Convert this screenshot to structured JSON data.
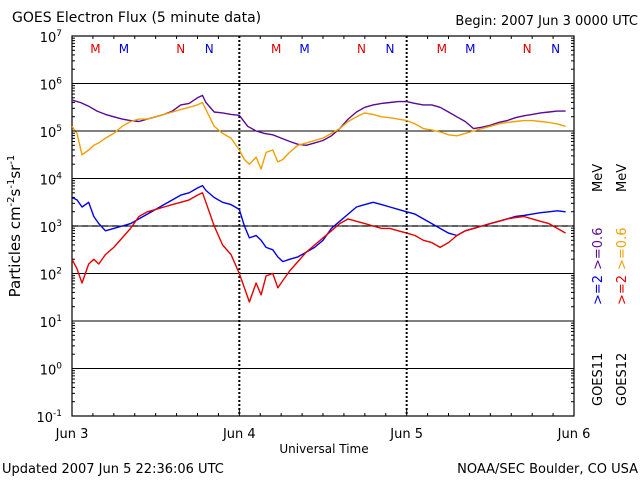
{
  "chart_data": {
    "type": "line",
    "title": "GOES Electron Flux (5 minute data)",
    "begin_label": "Begin: 2007 Jun 3 0000 UTC",
    "xlabel": "Universal Time",
    "ylabel_parts": [
      "Particles cm",
      "-2",
      "s",
      "-1",
      "sr",
      "-1"
    ],
    "updated_label": "Updated 2007 Jun  5 22:36:06 UTC",
    "credit_label": "NOAA/SEC Boulder, CO USA",
    "x_ticks": [
      {
        "x": 0,
        "label": "Jun 3"
      },
      {
        "x": 1,
        "label": "Jun 4"
      },
      {
        "x": 2,
        "label": "Jun 5"
      },
      {
        "x": 3,
        "label": "Jun 6"
      }
    ],
    "xlim": [
      0,
      3
    ],
    "ylim_log10": [
      -1,
      7
    ],
    "y_ticks": [
      {
        "exp": 7,
        "base": "10",
        "sup": "7"
      },
      {
        "exp": 6,
        "base": "10",
        "sup": "6"
      },
      {
        "exp": 5,
        "base": "10",
        "sup": "5"
      },
      {
        "exp": 4,
        "base": "10",
        "sup": "4"
      },
      {
        "exp": 3,
        "base": "10",
        "sup": "3"
      },
      {
        "exp": 2,
        "base": "10",
        "sup": "2"
      },
      {
        "exp": 1,
        "base": "10",
        "sup": "1"
      },
      {
        "exp": 0,
        "base": "10",
        "sup": "0"
      },
      {
        "exp": -1,
        "base": "10",
        "sup": "-1"
      }
    ],
    "threshold_log10": 3,
    "markers": [
      {
        "x": 0.14,
        "label": "M",
        "color": "#e00000"
      },
      {
        "x": 0.31,
        "label": "M",
        "color": "#0000e0"
      },
      {
        "x": 0.65,
        "label": "N",
        "color": "#e00000"
      },
      {
        "x": 0.82,
        "label": "N",
        "color": "#0000e0"
      },
      {
        "x": 1.22,
        "label": "M",
        "color": "#e00000"
      },
      {
        "x": 1.39,
        "label": "M",
        "color": "#0000e0"
      },
      {
        "x": 1.73,
        "label": "N",
        "color": "#e00000"
      },
      {
        "x": 1.9,
        "label": "N",
        "color": "#0000e0"
      },
      {
        "x": 2.21,
        "label": "M",
        "color": "#e00000"
      },
      {
        "x": 2.38,
        "label": "M",
        "color": "#0000e0"
      },
      {
        "x": 2.72,
        "label": "N",
        "color": "#e00000"
      },
      {
        "x": 2.89,
        "label": "N",
        "color": "#0000e0"
      }
    ],
    "legend": {
      "goes11_label": "GOES11",
      "goes12_label": "GOES12",
      "g11_low_label": ">=2",
      "g11_high_label": ">=0.6",
      "g12_low_label": ">=2",
      "g12_high_label": ">=0.6",
      "unit_label": "MeV"
    },
    "series": [
      {
        "name": "GOES11 >=0.6 MeV",
        "color": "#5a0a96",
        "x": [
          0.0,
          0.05,
          0.1,
          0.15,
          0.2,
          0.25,
          0.3,
          0.35,
          0.4,
          0.45,
          0.5,
          0.55,
          0.6,
          0.65,
          0.7,
          0.75,
          0.78,
          0.8,
          0.85,
          0.9,
          0.95,
          1.0,
          1.05,
          1.1,
          1.15,
          1.2,
          1.25,
          1.3,
          1.35,
          1.4,
          1.45,
          1.5,
          1.55,
          1.6,
          1.65,
          1.7,
          1.75,
          1.8,
          1.85,
          1.9,
          1.95,
          2.0,
          2.05,
          2.1,
          2.15,
          2.2,
          2.25,
          2.3,
          2.35,
          2.4,
          2.45,
          2.5,
          2.55,
          2.6,
          2.65,
          2.7,
          2.75,
          2.8,
          2.85,
          2.9,
          2.95
        ],
        "log10_values": [
          5.65,
          5.6,
          5.52,
          5.42,
          5.35,
          5.3,
          5.25,
          5.22,
          5.2,
          5.25,
          5.3,
          5.35,
          5.42,
          5.55,
          5.58,
          5.7,
          5.75,
          5.6,
          5.4,
          5.38,
          5.35,
          5.33,
          5.1,
          5.0,
          4.95,
          4.92,
          4.85,
          4.78,
          4.72,
          4.7,
          4.75,
          4.8,
          4.9,
          5.05,
          5.25,
          5.4,
          5.5,
          5.55,
          5.58,
          5.6,
          5.62,
          5.62,
          5.58,
          5.55,
          5.55,
          5.5,
          5.4,
          5.3,
          5.2,
          5.05,
          5.08,
          5.12,
          5.18,
          5.22,
          5.28,
          5.32,
          5.35,
          5.38,
          5.4,
          5.42,
          5.42
        ]
      },
      {
        "name": "GOES12 >=0.6 MeV",
        "color": "#f0a000",
        "x": [
          0.0,
          0.03,
          0.06,
          0.1,
          0.13,
          0.16,
          0.2,
          0.25,
          0.3,
          0.35,
          0.4,
          0.45,
          0.5,
          0.55,
          0.6,
          0.65,
          0.7,
          0.75,
          0.78,
          0.8,
          0.85,
          0.9,
          0.95,
          1.0,
          1.03,
          1.06,
          1.1,
          1.13,
          1.16,
          1.2,
          1.23,
          1.26,
          1.3,
          1.35,
          1.4,
          1.45,
          1.5,
          1.55,
          1.6,
          1.65,
          1.7,
          1.75,
          1.8,
          1.85,
          1.9,
          1.95,
          2.0,
          2.05,
          2.1,
          2.15,
          2.2,
          2.25,
          2.3,
          2.35,
          2.4,
          2.45,
          2.5,
          2.55,
          2.6,
          2.65,
          2.7,
          2.75,
          2.8,
          2.85,
          2.9,
          2.95
        ],
        "log10_values": [
          5.1,
          4.95,
          4.5,
          4.6,
          4.7,
          4.75,
          4.85,
          4.95,
          5.1,
          5.2,
          5.25,
          5.25,
          5.3,
          5.35,
          5.4,
          5.45,
          5.5,
          5.55,
          5.6,
          5.45,
          5.1,
          4.95,
          4.85,
          4.6,
          4.4,
          4.3,
          4.45,
          4.2,
          4.55,
          4.6,
          4.35,
          4.4,
          4.55,
          4.7,
          4.75,
          4.8,
          4.85,
          4.95,
          5.05,
          5.2,
          5.3,
          5.38,
          5.35,
          5.3,
          5.28,
          5.25,
          5.22,
          5.15,
          5.05,
          5.02,
          4.98,
          4.92,
          4.9,
          4.95,
          5.0,
          5.05,
          5.1,
          5.15,
          5.18,
          5.2,
          5.22,
          5.22,
          5.2,
          5.18,
          5.15,
          5.1
        ]
      },
      {
        "name": "GOES11 >=2 MeV",
        "color": "#0000e6",
        "x": [
          0.0,
          0.03,
          0.06,
          0.1,
          0.13,
          0.16,
          0.2,
          0.25,
          0.3,
          0.35,
          0.4,
          0.45,
          0.5,
          0.55,
          0.6,
          0.65,
          0.7,
          0.75,
          0.78,
          0.8,
          0.85,
          0.9,
          0.95,
          1.0,
          1.03,
          1.06,
          1.1,
          1.13,
          1.16,
          1.2,
          1.23,
          1.26,
          1.3,
          1.35,
          1.4,
          1.45,
          1.5,
          1.55,
          1.6,
          1.65,
          1.7,
          1.75,
          1.8,
          1.85,
          1.9,
          1.95,
          2.0,
          2.05,
          2.1,
          2.15,
          2.2,
          2.25,
          2.3,
          2.35,
          2.4,
          2.45,
          2.5,
          2.55,
          2.6,
          2.65,
          2.7,
          2.75,
          2.8,
          2.85,
          2.9,
          2.95
        ],
        "log10_values": [
          3.6,
          3.55,
          3.4,
          3.5,
          3.2,
          3.05,
          2.9,
          2.95,
          3.0,
          3.05,
          3.15,
          3.25,
          3.35,
          3.45,
          3.55,
          3.65,
          3.7,
          3.8,
          3.85,
          3.75,
          3.6,
          3.5,
          3.45,
          3.35,
          3.0,
          2.75,
          2.8,
          2.7,
          2.55,
          2.5,
          2.35,
          2.25,
          2.3,
          2.35,
          2.45,
          2.55,
          2.7,
          2.95,
          3.1,
          3.25,
          3.4,
          3.45,
          3.5,
          3.45,
          3.4,
          3.35,
          3.3,
          3.25,
          3.15,
          3.05,
          2.95,
          2.85,
          2.8,
          2.9,
          2.95,
          3.0,
          3.05,
          3.1,
          3.15,
          3.2,
          3.22,
          3.25,
          3.28,
          3.3,
          3.32,
          3.3
        ]
      },
      {
        "name": "GOES12 >=2 MeV",
        "color": "#e60000",
        "x": [
          0.0,
          0.03,
          0.06,
          0.1,
          0.13,
          0.16,
          0.2,
          0.25,
          0.3,
          0.35,
          0.4,
          0.45,
          0.5,
          0.55,
          0.6,
          0.65,
          0.7,
          0.75,
          0.78,
          0.8,
          0.85,
          0.9,
          0.95,
          1.0,
          1.03,
          1.06,
          1.1,
          1.13,
          1.16,
          1.2,
          1.23,
          1.26,
          1.3,
          1.35,
          1.4,
          1.45,
          1.5,
          1.55,
          1.6,
          1.65,
          1.7,
          1.75,
          1.8,
          1.85,
          1.9,
          1.95,
          2.0,
          2.05,
          2.1,
          2.15,
          2.2,
          2.25,
          2.3,
          2.35,
          2.4,
          2.45,
          2.5,
          2.55,
          2.6,
          2.65,
          2.7,
          2.75,
          2.8,
          2.85,
          2.9,
          2.95
        ],
        "log10_values": [
          2.3,
          2.1,
          1.8,
          2.2,
          2.3,
          2.2,
          2.4,
          2.55,
          2.75,
          2.95,
          3.2,
          3.3,
          3.35,
          3.4,
          3.45,
          3.5,
          3.55,
          3.65,
          3.7,
          3.5,
          3.0,
          2.6,
          2.4,
          2.0,
          1.7,
          1.4,
          1.8,
          1.55,
          1.95,
          2.0,
          1.7,
          1.85,
          2.05,
          2.25,
          2.45,
          2.6,
          2.75,
          2.9,
          3.05,
          3.15,
          3.1,
          3.05,
          3.0,
          2.95,
          2.95,
          2.9,
          2.85,
          2.8,
          2.7,
          2.65,
          2.55,
          2.65,
          2.8,
          2.9,
          2.95,
          3.0,
          3.05,
          3.1,
          3.15,
          3.18,
          3.2,
          3.15,
          3.1,
          3.05,
          2.95,
          2.85
        ]
      }
    ]
  }
}
